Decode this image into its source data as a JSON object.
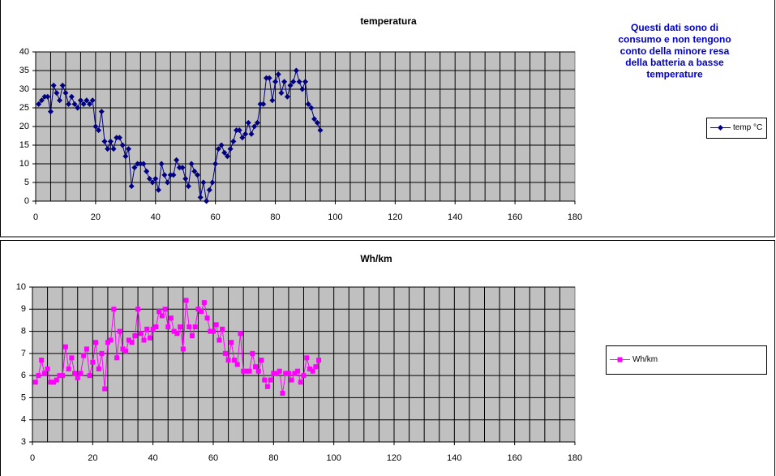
{
  "chart_data": [
    {
      "type": "line",
      "title": "temperatura",
      "annotation": [
        "Questi dati sono di",
        "consumo e non tengono",
        "conto della minore resa",
        "della batteria a basse",
        "temperature"
      ],
      "x": [
        1,
        2,
        3,
        4,
        5,
        6,
        7,
        8,
        9,
        10,
        11,
        12,
        13,
        14,
        15,
        16,
        17,
        18,
        19,
        20,
        21,
        22,
        23,
        24,
        25,
        26,
        27,
        28,
        29,
        30,
        31,
        32,
        33,
        34,
        35,
        36,
        37,
        38,
        39,
        40,
        41,
        42,
        43,
        44,
        45,
        46,
        47,
        48,
        49,
        50,
        51,
        52,
        53,
        54,
        55,
        56,
        57,
        58,
        59,
        60,
        61,
        62,
        63,
        64,
        65,
        66,
        67,
        68,
        69,
        70,
        71,
        72,
        73,
        74,
        75,
        76,
        77,
        78,
        79,
        80,
        81,
        82,
        83,
        84,
        85,
        86,
        87,
        88,
        89,
        90,
        91,
        92,
        93,
        94,
        95
      ],
      "series": [
        {
          "name": "temp °C",
          "color": "#000080",
          "marker": "diamond",
          "values": [
            26,
            27,
            28,
            28,
            24,
            31,
            29,
            27,
            31,
            29,
            26,
            28,
            26,
            25,
            27,
            26,
            27,
            26,
            27,
            20,
            19,
            24,
            16,
            14,
            16,
            14,
            17,
            17,
            15,
            12,
            14,
            4,
            9,
            10,
            10,
            10,
            8,
            6,
            5,
            6,
            3,
            10,
            7,
            5,
            7,
            7,
            11,
            9,
            9,
            6,
            4,
            10,
            8,
            7,
            1,
            5,
            0,
            3,
            5,
            10,
            14,
            15,
            13,
            12,
            14,
            16,
            19,
            19,
            17,
            18,
            21,
            18,
            20,
            21,
            26,
            26,
            33,
            33,
            27,
            32,
            34,
            29,
            32,
            28,
            31,
            32,
            35,
            32,
            30,
            32,
            26,
            25,
            22,
            21,
            19
          ]
        }
      ],
      "xlim": [
        0,
        180
      ],
      "xticks": [
        0,
        20,
        40,
        60,
        80,
        100,
        120,
        140,
        160,
        180
      ],
      "ylim": [
        0,
        40
      ],
      "yticks": [
        0,
        5,
        10,
        15,
        20,
        25,
        30,
        35,
        40
      ],
      "grid": true
    },
    {
      "type": "line",
      "title": "Wh/km",
      "x": [
        1,
        2,
        3,
        4,
        5,
        6,
        7,
        8,
        9,
        10,
        11,
        12,
        13,
        14,
        15,
        16,
        17,
        18,
        19,
        20,
        21,
        22,
        23,
        24,
        25,
        26,
        27,
        28,
        29,
        30,
        31,
        32,
        33,
        34,
        35,
        36,
        37,
        38,
        39,
        40,
        41,
        42,
        43,
        44,
        45,
        46,
        47,
        48,
        49,
        50,
        51,
        52,
        53,
        54,
        55,
        56,
        57,
        58,
        59,
        60,
        61,
        62,
        63,
        64,
        65,
        66,
        67,
        68,
        69,
        70,
        71,
        72,
        73,
        74,
        75,
        76,
        77,
        78,
        79,
        80,
        81,
        82,
        83,
        84,
        85,
        86,
        87,
        88,
        89,
        90,
        91,
        92,
        93,
        94,
        95
      ],
      "series": [
        {
          "name": "Wh/km",
          "color": "#ff00ff",
          "marker": "square",
          "values": [
            5.7,
            6.0,
            6.7,
            6.1,
            6.3,
            5.7,
            5.7,
            5.8,
            6.0,
            6.0,
            7.3,
            6.3,
            6.8,
            6.1,
            5.9,
            6.1,
            6.9,
            7.2,
            6.0,
            6.6,
            7.5,
            6.3,
            7.0,
            5.4,
            7.5,
            7.6,
            9.0,
            6.8,
            8.0,
            7.2,
            7.1,
            7.6,
            7.5,
            7.8,
            9.0,
            7.9,
            7.6,
            8.1,
            7.7,
            8.1,
            8.2,
            8.9,
            8.7,
            9.0,
            8.2,
            8.6,
            8.0,
            7.9,
            8.2,
            7.2,
            9.4,
            8.2,
            7.8,
            8.2,
            9.0,
            8.9,
            9.3,
            8.6,
            8.0,
            8.0,
            8.3,
            7.6,
            8.1,
            7.0,
            6.7,
            7.5,
            6.7,
            6.5,
            7.9,
            6.2,
            6.2,
            6.2,
            7.0,
            6.4,
            6.2,
            6.7,
            5.8,
            5.5,
            5.8,
            6.1,
            6.1,
            6.2,
            5.2,
            6.1,
            6.1,
            5.8,
            6.1,
            6.2,
            5.7,
            6.0,
            6.8,
            6.3,
            6.2,
            6.4,
            6.7
          ]
        }
      ],
      "xlim": [
        0,
        180
      ],
      "xticks": [
        0,
        20,
        40,
        60,
        80,
        100,
        120,
        140,
        160,
        180
      ],
      "ylim": [
        3,
        10
      ],
      "yticks": [
        3,
        4,
        5,
        6,
        7,
        8,
        9,
        10
      ],
      "grid": true
    }
  ]
}
